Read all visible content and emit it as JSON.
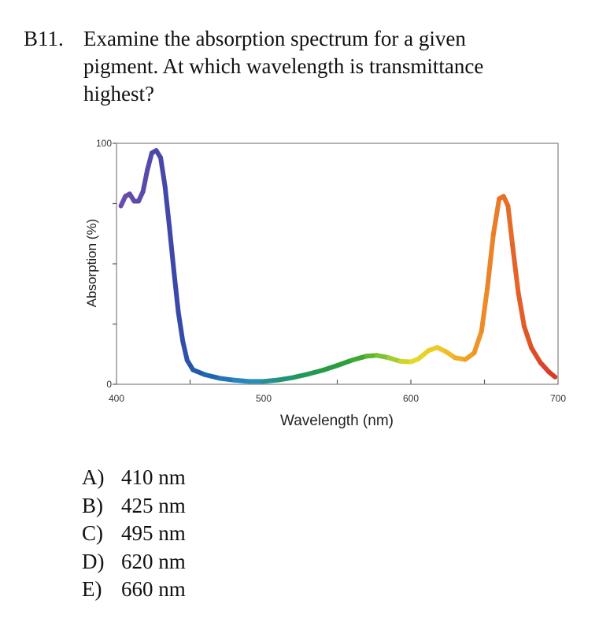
{
  "question": {
    "number": "B11.",
    "lines": [
      "Examine the absorption spectrum for a given",
      "pigment.  At which wavelength is transmittance",
      "highest?"
    ]
  },
  "choices": [
    {
      "letter": "A)",
      "text": "410 nm"
    },
    {
      "letter": "B)",
      "text": "425 nm"
    },
    {
      "letter": "C)",
      "text": "495 nm"
    },
    {
      "letter": "D)",
      "text": "620 nm"
    },
    {
      "letter": "E)",
      "text": "660 nm"
    }
  ],
  "chart_data": {
    "type": "line",
    "title": "",
    "xlabel": "Wavelength (nm)",
    "ylabel": "Absorption (%)",
    "xlim": [
      400,
      700
    ],
    "ylim": [
      0,
      100
    ],
    "x_tick_labels": [
      "400",
      "500",
      "600",
      "700"
    ],
    "y_tick_labels": [
      "0",
      "100"
    ],
    "grid": false,
    "series": [
      {
        "colors": "spectral (violet to red)",
        "points": [
          [
            403,
            74
          ],
          [
            406,
            78
          ],
          [
            409,
            79
          ],
          [
            412,
            76
          ],
          [
            415,
            76
          ],
          [
            418,
            80
          ],
          [
            421,
            89
          ],
          [
            424,
            96
          ],
          [
            427,
            97
          ],
          [
            430,
            94
          ],
          [
            433,
            82
          ],
          [
            436,
            65
          ],
          [
            439,
            47
          ],
          [
            442,
            30
          ],
          [
            445,
            18
          ],
          [
            448,
            10
          ],
          [
            452,
            6
          ],
          [
            460,
            4
          ],
          [
            470,
            2.5
          ],
          [
            480,
            1.7
          ],
          [
            490,
            1.2
          ],
          [
            500,
            1.2
          ],
          [
            510,
            1.8
          ],
          [
            520,
            2.8
          ],
          [
            530,
            4.2
          ],
          [
            540,
            5.8
          ],
          [
            550,
            7.8
          ],
          [
            560,
            10
          ],
          [
            570,
            11.7
          ],
          [
            577,
            12
          ],
          [
            585,
            11
          ],
          [
            593,
            9.5
          ],
          [
            600,
            9.3
          ],
          [
            605,
            10.5
          ],
          [
            612,
            14
          ],
          [
            618,
            15.3
          ],
          [
            624,
            13.5
          ],
          [
            630,
            11
          ],
          [
            637,
            10.3
          ],
          [
            643,
            13
          ],
          [
            648,
            22
          ],
          [
            652,
            40
          ],
          [
            656,
            62
          ],
          [
            660,
            77
          ],
          [
            663,
            78
          ],
          [
            666,
            74
          ],
          [
            669,
            58
          ],
          [
            673,
            38
          ],
          [
            677,
            24
          ],
          [
            682,
            15
          ],
          [
            688,
            9
          ],
          [
            694,
            5
          ],
          [
            698,
            3
          ]
        ]
      }
    ]
  }
}
